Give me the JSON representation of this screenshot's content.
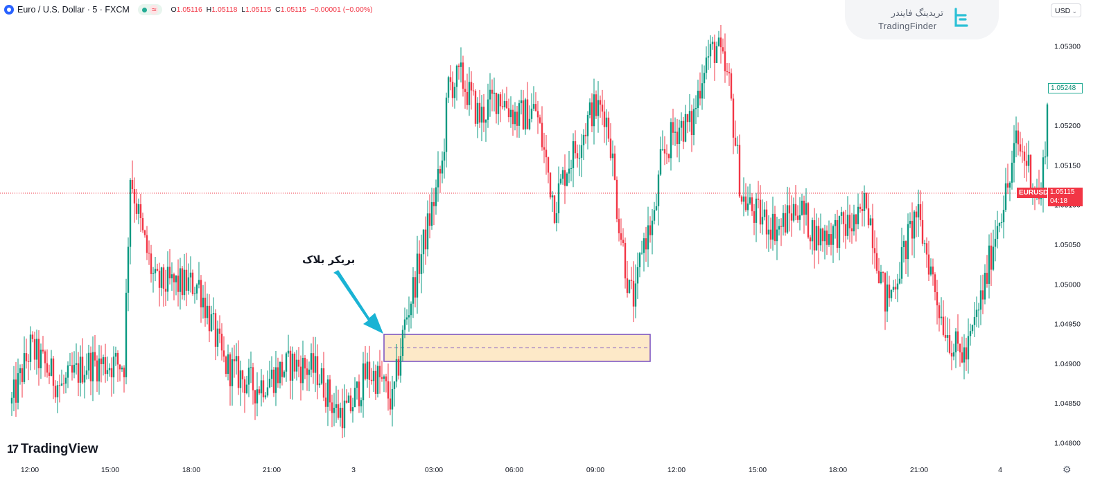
{
  "header": {
    "symbol_title": "Euro / U.S. Dollar · 5 · FXCM",
    "wave_glyph": "≈",
    "ohlc": [
      {
        "key": "O",
        "value": "1.05116"
      },
      {
        "key": "H",
        "value": "1.05118"
      },
      {
        "key": "L",
        "value": "1.05115"
      },
      {
        "key": "C",
        "value": "1.05115"
      },
      {
        "key": "",
        "value": "−0.00001 (−0.00%)"
      }
    ]
  },
  "banner": {
    "title_fa": "تریدینگ فایندر",
    "title_en": "TradingFinder"
  },
  "currency": {
    "label": "USD"
  },
  "price_tags": {
    "last_green": "1.05248",
    "symbol": "EURUSD",
    "current": "1.05115",
    "countdown": "04:18"
  },
  "annotation": {
    "text": "بریکر بلاک"
  },
  "branding": {
    "tv_mark": "17",
    "tv_text": "TradingView"
  },
  "colors": {
    "up": "#089981",
    "down": "#f23645",
    "box_fill": "#fde9c8",
    "box_border": "#7e57c2",
    "current_line": "#f23645",
    "arrow": "#1ab3d4"
  },
  "chart_data": {
    "type": "candlestick",
    "title": "Euro / U.S. Dollar · 5 · FXCM",
    "ylim": [
      1.0478,
      1.0535
    ],
    "y_ticks": [
      "1.04800",
      "1.04850",
      "1.04900",
      "1.04950",
      "1.05000",
      "1.05050",
      "1.05100",
      "1.05150",
      "1.05200",
      "1.05250",
      "1.05300"
    ],
    "x_ticks": [
      "12:00",
      "15:00",
      "18:00",
      "21:00",
      "3",
      "03:00",
      "06:00",
      "09:00",
      "12:00",
      "15:00",
      "18:00",
      "21:00",
      "4"
    ],
    "current_price": 1.05115,
    "breaker_block": {
      "top": 1.04937,
      "bottom": 1.04903,
      "mid": 1.0492,
      "start_time": "3 01:45",
      "end_time": "3 10:30"
    },
    "close_path": [
      {
        "t": 0,
        "p": 1.0485
      },
      {
        "t": 3,
        "p": 1.0492
      },
      {
        "t": 6,
        "p": 1.0489
      },
      {
        "t": 8,
        "p": 1.0487
      },
      {
        "t": 12,
        "p": 1.049
      },
      {
        "t": 18,
        "p": 1.049
      },
      {
        "t": 19,
        "p": 1.0514
      },
      {
        "t": 21,
        "p": 1.0506
      },
      {
        "t": 23,
        "p": 1.05
      },
      {
        "t": 27,
        "p": 1.05
      },
      {
        "t": 30,
        "p": 1.05
      },
      {
        "t": 34,
        "p": 1.049
      },
      {
        "t": 39,
        "p": 1.0487
      },
      {
        "t": 45,
        "p": 1.049
      },
      {
        "t": 49,
        "p": 1.0489
      },
      {
        "t": 52,
        "p": 1.0484
      },
      {
        "t": 54,
        "p": 1.0484
      },
      {
        "t": 57,
        "p": 1.0489
      },
      {
        "t": 59,
        "p": 1.0488
      },
      {
        "t": 61,
        "p": 1.0485
      },
      {
        "t": 63,
        "p": 1.0495
      },
      {
        "t": 66,
        "p": 1.0505
      },
      {
        "t": 69,
        "p": 1.0515
      },
      {
        "t": 70,
        "p": 1.0525
      },
      {
        "t": 72,
        "p": 1.0526
      },
      {
        "t": 75,
        "p": 1.0521
      },
      {
        "t": 78,
        "p": 1.0524
      },
      {
        "t": 81,
        "p": 1.0521
      },
      {
        "t": 84,
        "p": 1.0522
      },
      {
        "t": 87,
        "p": 1.051
      },
      {
        "t": 89,
        "p": 1.0515
      },
      {
        "t": 91,
        "p": 1.0518
      },
      {
        "t": 93,
        "p": 1.0522
      },
      {
        "t": 95,
        "p": 1.0522
      },
      {
        "t": 96,
        "p": 1.0518
      },
      {
        "t": 97,
        "p": 1.051
      },
      {
        "t": 99,
        "p": 1.0499
      },
      {
        "t": 100,
        "p": 1.0498
      },
      {
        "t": 101,
        "p": 1.0505
      },
      {
        "t": 103,
        "p": 1.0508
      },
      {
        "t": 104,
        "p": 1.0515
      },
      {
        "t": 106,
        "p": 1.0519
      },
      {
        "t": 107,
        "p": 1.052
      },
      {
        "t": 109,
        "p": 1.052
      },
      {
        "t": 111,
        "p": 1.0528
      },
      {
        "t": 113,
        "p": 1.053
      },
      {
        "t": 115,
        "p": 1.0525
      },
      {
        "t": 117,
        "p": 1.0511
      },
      {
        "t": 119,
        "p": 1.0509
      },
      {
        "t": 123,
        "p": 1.0507
      },
      {
        "t": 126,
        "p": 1.051
      },
      {
        "t": 129,
        "p": 1.0506
      },
      {
        "t": 133,
        "p": 1.0507
      },
      {
        "t": 136,
        "p": 1.0508
      },
      {
        "t": 137,
        "p": 1.0511
      },
      {
        "t": 140,
        "p": 1.0498
      },
      {
        "t": 141,
        "p": 1.0499
      },
      {
        "t": 143,
        "p": 1.0504
      },
      {
        "t": 145,
        "p": 1.0509
      },
      {
        "t": 147,
        "p": 1.0503
      },
      {
        "t": 149,
        "p": 1.0496
      },
      {
        "t": 151,
        "p": 1.0492
      },
      {
        "t": 153,
        "p": 1.0491
      },
      {
        "t": 156,
        "p": 1.05
      },
      {
        "t": 158,
        "p": 1.0508
      },
      {
        "t": 160,
        "p": 1.0513
      },
      {
        "t": 161,
        "p": 1.0518
      },
      {
        "t": 163,
        "p": 1.0515
      },
      {
        "t": 164,
        "p": 1.0512
      },
      {
        "t": 165,
        "p": 1.0511
      },
      {
        "t": 166,
        "p": 1.0522
      }
    ]
  }
}
